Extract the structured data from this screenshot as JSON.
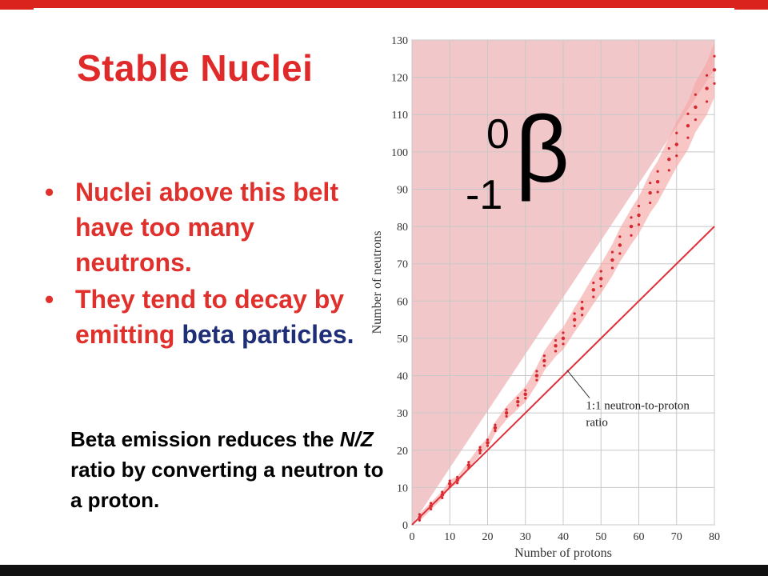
{
  "slide": {
    "title": "Stable Nuclei",
    "bullets": [
      {
        "text": "Nuclei above this belt have too many neutrons."
      },
      {
        "text_before": "They tend to decay by emitting ",
        "highlight": "beta",
        "text_after": " particles."
      }
    ],
    "bullet_glyph": "•",
    "note": {
      "part1": "Beta emission reduces the ",
      "italic": "N/Z",
      "part2": " ratio by converting a neutron to a proton."
    },
    "beta_symbol": {
      "superscript": "0",
      "subscript": "-1",
      "symbol": "β"
    },
    "colors": {
      "title": "#e02a2a",
      "highlight": "#1e2f78",
      "bar": "#d9231c",
      "shade": "#f2c7c9",
      "belt": "#d7262e"
    }
  },
  "chart_data": {
    "type": "scatter",
    "xlabel": "Number of protons",
    "ylabel": "Number of neutrons",
    "xlim": [
      0,
      80
    ],
    "ylim": [
      0,
      130
    ],
    "x_ticks": [
      0,
      10,
      20,
      30,
      40,
      50,
      60,
      70,
      80
    ],
    "y_ticks": [
      0,
      10,
      20,
      30,
      40,
      50,
      60,
      70,
      80,
      90,
      100,
      110,
      120,
      130
    ],
    "grid": true,
    "reference_line": {
      "label": "1:1 neutron-to-proton ratio",
      "from": [
        0,
        0
      ],
      "to": [
        80,
        80
      ]
    },
    "shaded_region": {
      "description": "region above belt",
      "polygon": [
        [
          0,
          0
        ],
        [
          0,
          130
        ],
        [
          80,
          130
        ],
        [
          80,
          122
        ]
      ]
    },
    "belt_of_stability": [
      [
        2,
        2
      ],
      [
        5,
        5
      ],
      [
        8,
        8
      ],
      [
        10,
        11
      ],
      [
        12,
        12
      ],
      [
        15,
        16
      ],
      [
        18,
        20
      ],
      [
        20,
        22
      ],
      [
        22,
        26
      ],
      [
        25,
        30
      ],
      [
        28,
        33
      ],
      [
        30,
        35
      ],
      [
        33,
        40
      ],
      [
        35,
        44
      ],
      [
        38,
        48
      ],
      [
        40,
        50
      ],
      [
        43,
        55
      ],
      [
        45,
        58
      ],
      [
        48,
        63
      ],
      [
        50,
        66
      ],
      [
        53,
        71
      ],
      [
        55,
        75
      ],
      [
        58,
        80
      ],
      [
        60,
        83
      ],
      [
        63,
        89
      ],
      [
        65,
        92
      ],
      [
        68,
        98
      ],
      [
        70,
        102
      ],
      [
        73,
        107
      ],
      [
        75,
        112
      ],
      [
        78,
        117
      ],
      [
        80,
        122
      ]
    ]
  }
}
